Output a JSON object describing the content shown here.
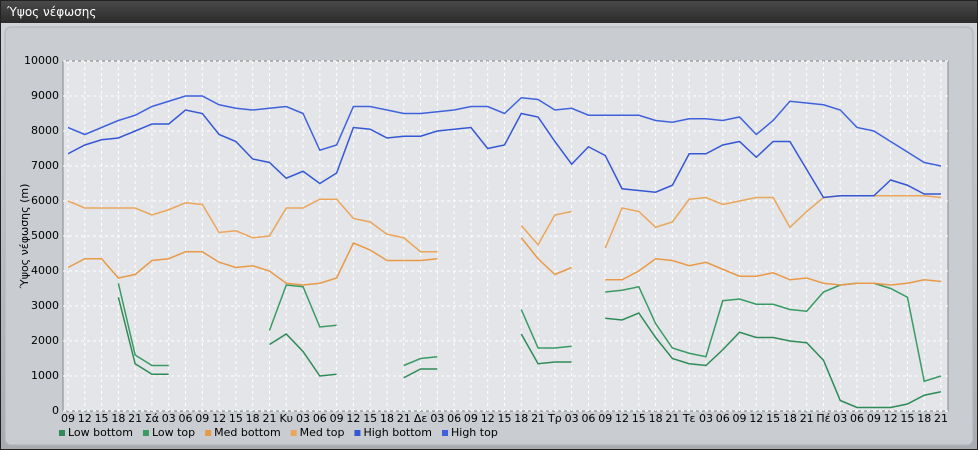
{
  "window_title": "Ύψος νέφωσης",
  "chart_data": {
    "type": "line",
    "y_label": "Ύψος νέφωσης (m)",
    "categories": [
      "09",
      "12",
      "15",
      "18",
      "21",
      "Σά",
      "03",
      "06",
      "09",
      "12",
      "15",
      "18",
      "21",
      "Κυ",
      "03",
      "06",
      "09",
      "12",
      "15",
      "18",
      "21",
      "Δε",
      "03",
      "06",
      "09",
      "12",
      "15",
      "18",
      "21",
      "Τρ",
      "03",
      "06",
      "09",
      "12",
      "15",
      "18",
      "21",
      "Τε",
      "03",
      "06",
      "09",
      "12",
      "15",
      "18",
      "21",
      "Πέ",
      "03",
      "06",
      "09",
      "12",
      "15",
      "18",
      "21"
    ],
    "ylim": [
      0,
      10000
    ],
    "yticks": [
      0,
      1000,
      2000,
      3000,
      4000,
      5000,
      6000,
      7000,
      8000,
      9000,
      10000
    ],
    "grid": true,
    "legend": "bottom",
    "series": [
      {
        "name": "Low bottom",
        "color": "#2e8b57",
        "values": [
          null,
          null,
          null,
          3250,
          1350,
          1050,
          1050,
          null,
          null,
          null,
          null,
          null,
          1900,
          2200,
          1700,
          1000,
          1050,
          null,
          null,
          null,
          950,
          1200,
          1200,
          null,
          null,
          null,
          null,
          2200,
          1350,
          1400,
          1400,
          null,
          2650,
          2600,
          2800,
          2100,
          1500,
          1350,
          1300,
          1750,
          2250,
          2100,
          2100,
          2000,
          1950,
          1450,
          300,
          100,
          100,
          100,
          200,
          450,
          550
        ]
      },
      {
        "name": "Low top",
        "color": "#3a9a64",
        "values": [
          null,
          null,
          null,
          3650,
          1600,
          1300,
          1300,
          null,
          null,
          null,
          null,
          null,
          2300,
          3600,
          3550,
          2400,
          2450,
          null,
          null,
          null,
          1300,
          1500,
          1550,
          null,
          null,
          null,
          null,
          2900,
          1800,
          1800,
          1850,
          null,
          3400,
          3450,
          3550,
          2500,
          1800,
          1650,
          1550,
          3150,
          3200,
          3050,
          3050,
          2900,
          2850,
          3400,
          3600,
          3650,
          3650,
          3500,
          3250,
          850,
          1000
        ]
      },
      {
        "name": "Med bottom",
        "color": "#e89a48",
        "values": [
          4100,
          4350,
          4350,
          3800,
          3900,
          4300,
          4350,
          4550,
          4550,
          4250,
          4100,
          4150,
          4000,
          3650,
          3600,
          3650,
          3800,
          4800,
          4600,
          4300,
          4300,
          4300,
          4350,
          null,
          null,
          null,
          null,
          4950,
          4350,
          3900,
          4100,
          null,
          3750,
          3750,
          4000,
          4350,
          4300,
          4150,
          4250,
          4050,
          3850,
          3850,
          3950,
          3750,
          3800,
          3650,
          3600,
          3650,
          3650,
          3600,
          3650,
          3750,
          3700
        ]
      },
      {
        "name": "Med top",
        "color": "#eba65a",
        "values": [
          6000,
          5800,
          5800,
          5800,
          5800,
          5600,
          5750,
          5950,
          5900,
          5100,
          5150,
          4950,
          5000,
          5800,
          5800,
          6050,
          6050,
          5500,
          5400,
          5050,
          4950,
          4550,
          4550,
          null,
          null,
          null,
          null,
          5300,
          4750,
          5600,
          5700,
          null,
          4650,
          5800,
          5700,
          5250,
          5400,
          6050,
          6100,
          5900,
          6000,
          6100,
          6100,
          5250,
          5700,
          6100,
          6150,
          6150,
          6150,
          6150,
          6150,
          6150,
          6100
        ]
      },
      {
        "name": "High bottom",
        "color": "#3557d4",
        "values": [
          7350,
          7600,
          7750,
          7800,
          8000,
          8200,
          8200,
          8600,
          8500,
          7900,
          7700,
          7200,
          7100,
          6650,
          6850,
          6500,
          6800,
          8100,
          8050,
          7800,
          7850,
          7850,
          8000,
          8050,
          8100,
          7500,
          7600,
          8500,
          8400,
          7700,
          7050,
          7550,
          7300,
          6350,
          6300,
          6250,
          6450,
          7350,
          7350,
          7600,
          7700,
          7250,
          7700,
          7700,
          6900,
          6100,
          6150,
          6150,
          6150,
          6600,
          6450,
          6200,
          6200
        ]
      },
      {
        "name": "High top",
        "color": "#3f62dc",
        "values": [
          8100,
          7900,
          8100,
          8300,
          8450,
          8700,
          8850,
          9000,
          9000,
          8750,
          8650,
          8600,
          8650,
          8700,
          8500,
          7450,
          7600,
          8700,
          8700,
          8600,
          8500,
          8500,
          8550,
          8600,
          8700,
          8700,
          8500,
          8950,
          8900,
          8600,
          8650,
          8450,
          8450,
          8450,
          8450,
          8300,
          8250,
          8350,
          8350,
          8300,
          8400,
          7900,
          8300,
          8850,
          8800,
          8750,
          8600,
          8100,
          8000,
          7700,
          7400,
          7100,
          7000
        ]
      }
    ]
  }
}
